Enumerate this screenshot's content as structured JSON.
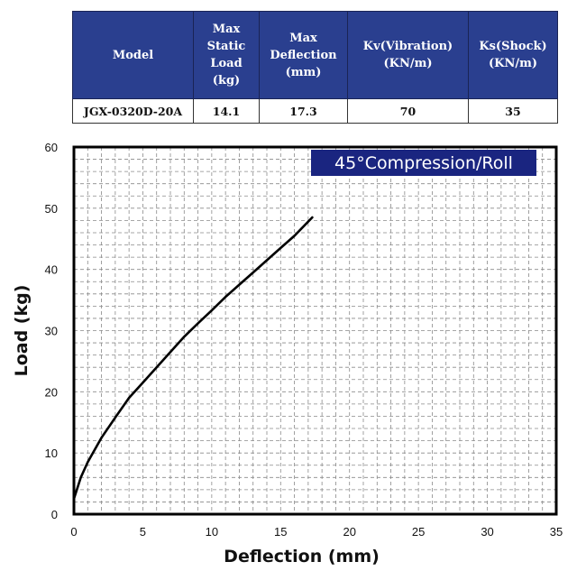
{
  "table": {
    "headers": [
      [
        "Model"
      ],
      [
        "Max",
        "Static",
        "Load",
        "(kg)"
      ],
      [
        "Max",
        "Deflection",
        "(mm)"
      ],
      [
        "Kv(Vibration)",
        "(KN/m)"
      ],
      [
        "Ks(Shock)",
        "(KN/m)"
      ]
    ],
    "row": [
      "JGX-0320D-20A",
      "14.1",
      "17.3",
      "70",
      "35"
    ]
  },
  "chart_data": {
    "type": "line",
    "title": "45°Compression/Roll",
    "xlabel": "Deflection (mm)",
    "ylabel": "Load (kg)",
    "xlim": [
      0,
      35
    ],
    "ylim": [
      0,
      60
    ],
    "xticks": [
      0,
      5,
      10,
      15,
      20,
      25,
      30,
      35
    ],
    "yticks": [
      0,
      10,
      20,
      30,
      40,
      50,
      60
    ],
    "grid": true,
    "series": [
      {
        "x": [
          0,
          0.5,
          1,
          2,
          3,
          4,
          5,
          6,
          7,
          8,
          9,
          10,
          11,
          12,
          13,
          14,
          15,
          16,
          17.3
        ],
        "y": [
          2.5,
          6,
          8.5,
          12.5,
          15.8,
          19,
          21.5,
          24,
          26.5,
          29,
          31.2,
          33.3,
          35.5,
          37.5,
          39.5,
          41.5,
          43.5,
          45.5,
          48.5
        ],
        "color": "#000000"
      }
    ],
    "title_bg_color": "#1a2580"
  }
}
